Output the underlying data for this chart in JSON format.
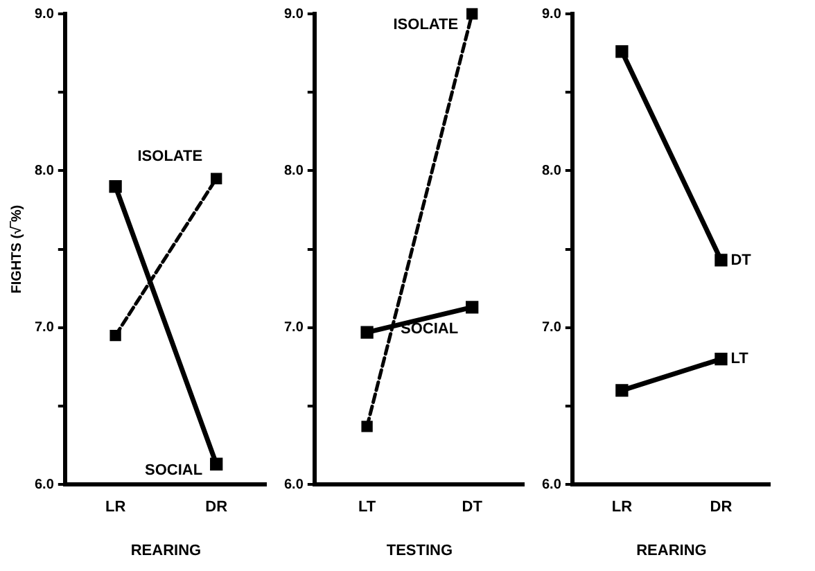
{
  "chart_data": [
    {
      "type": "line",
      "ylabel": "FIGHTS (√‾%)",
      "xlabel": "REARING",
      "categories": [
        "LR",
        "DR"
      ],
      "ylim": [
        6.0,
        9.0
      ],
      "yticks": [
        {
          "value": 6,
          "label": "6.0"
        },
        {
          "value": 6.5,
          "label": null
        },
        {
          "value": 7,
          "label": "7.0"
        },
        {
          "value": 7.5,
          "label": null
        },
        {
          "value": 8,
          "label": "8.0"
        },
        {
          "value": 8.5,
          "label": null
        },
        {
          "value": 9,
          "label": "9.0"
        }
      ],
      "grid": false,
      "legend": false,
      "marker": "square",
      "series": [
        {
          "name": "ISOLATE",
          "color": "#000000",
          "values": [
            6.95,
            7.95
          ],
          "line_style": "dashed"
        },
        {
          "name": "SOCIAL",
          "color": "#000000",
          "values": [
            7.9,
            6.13
          ],
          "line_style": "solid"
        }
      ]
    },
    {
      "type": "line",
      "xlabel": "TESTING",
      "categories": [
        "LT",
        "DT"
      ],
      "ylim": [
        6.0,
        9.0
      ],
      "yticks": [
        {
          "value": 6,
          "label": "6.0"
        },
        {
          "value": 6.5,
          "label": null
        },
        {
          "value": 7,
          "label": "7.0"
        },
        {
          "value": 7.5,
          "label": null
        },
        {
          "value": 8,
          "label": "8.0"
        },
        {
          "value": 8.5,
          "label": null
        },
        {
          "value": 9,
          "label": "9.0"
        }
      ],
      "grid": false,
      "legend": false,
      "marker": "square",
      "series": [
        {
          "name": "ISOLATE",
          "color": "#000000",
          "values": [
            6.37,
            9.0
          ],
          "line_style": "dashed"
        },
        {
          "name": "SOCIAL",
          "color": "#000000",
          "values": [
            6.97,
            7.13
          ],
          "line_style": "solid"
        }
      ]
    },
    {
      "type": "line",
      "xlabel": "REARING",
      "categories": [
        "LR",
        "DR"
      ],
      "ylim": [
        6.0,
        9.0
      ],
      "yticks": [
        {
          "value": 6,
          "label": "6.0"
        },
        {
          "value": 6.5,
          "label": null
        },
        {
          "value": 7,
          "label": "7.0"
        },
        {
          "value": 7.5,
          "label": null
        },
        {
          "value": 8,
          "label": "8.0"
        },
        {
          "value": 8.5,
          "label": null
        },
        {
          "value": 9,
          "label": "9.0"
        }
      ],
      "grid": false,
      "legend": false,
      "marker": "square",
      "series": [
        {
          "name": "DT",
          "color": "#000000",
          "values": [
            8.76,
            7.43
          ],
          "line_style": "solid"
        },
        {
          "name": "LT",
          "color": "#000000",
          "values": [
            6.6,
            6.8
          ],
          "line_style": "solid"
        }
      ]
    }
  ]
}
